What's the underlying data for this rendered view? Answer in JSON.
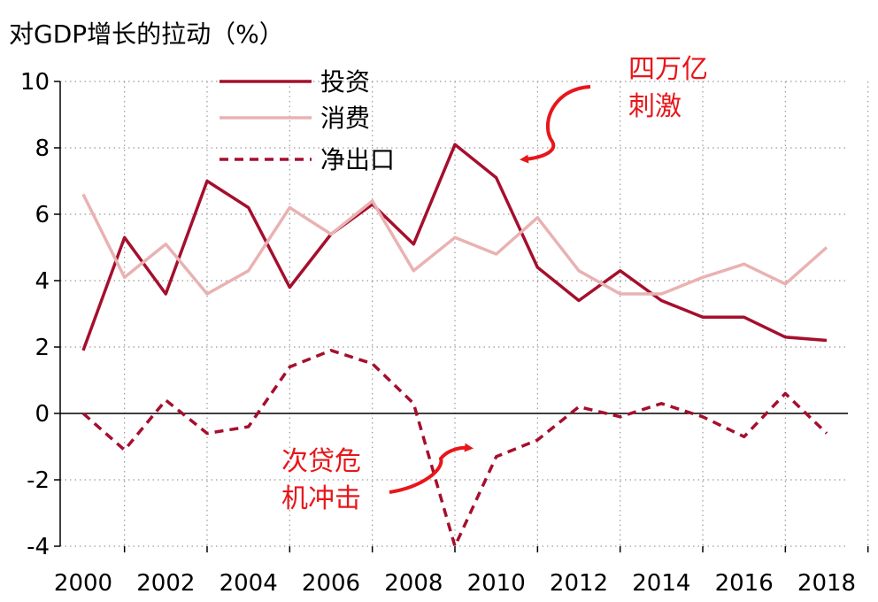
{
  "chart_data": {
    "type": "line",
    "title": "对GDP增长的拉动（%）",
    "x": [
      2000,
      2001,
      2002,
      2003,
      2004,
      2005,
      2006,
      2007,
      2008,
      2009,
      2010,
      2011,
      2012,
      2013,
      2014,
      2015,
      2016,
      2017,
      2018
    ],
    "x_tick_labels": [
      "2000",
      "2002",
      "2004",
      "2006",
      "2008",
      "2010",
      "2012",
      "2014",
      "2016",
      "2018"
    ],
    "y_tick_labels": [
      "10",
      "8",
      "6",
      "4",
      "2",
      "0",
      "-2",
      "-4"
    ],
    "ylim": [
      -4,
      10
    ],
    "xlim": [
      2000,
      2018
    ],
    "grid": "dotted",
    "legend_position": "top-left",
    "series": [
      {
        "name": "投资",
        "style": "solid",
        "color": "#a50f2d",
        "values": [
          1.9,
          5.3,
          3.6,
          7.0,
          6.2,
          3.8,
          5.4,
          6.3,
          5.1,
          8.1,
          7.1,
          4.4,
          3.4,
          4.3,
          3.4,
          2.9,
          2.9,
          2.3,
          2.2
        ]
      },
      {
        "name": "消费",
        "style": "solid",
        "color": "#e9b2b2",
        "values": [
          6.6,
          4.1,
          5.1,
          3.6,
          4.3,
          6.2,
          5.4,
          6.4,
          4.3,
          5.3,
          4.8,
          5.9,
          4.3,
          3.6,
          3.6,
          4.1,
          4.5,
          3.9,
          5.0
        ]
      },
      {
        "name": "净出口",
        "style": "dashed",
        "color": "#a50f2d",
        "values": [
          0.0,
          -1.1,
          0.4,
          -0.6,
          -0.4,
          1.4,
          1.9,
          1.5,
          0.3,
          -4.0,
          -1.3,
          -0.8,
          0.2,
          -0.1,
          0.3,
          -0.1,
          -0.7,
          0.6,
          -0.6
        ]
      }
    ],
    "annotations": [
      {
        "lines": [
          "四万亿",
          "刺激"
        ],
        "color": "#e8161a"
      },
      {
        "lines": [
          "次贷危",
          "机冲击"
        ],
        "color": "#e8161a"
      }
    ]
  }
}
